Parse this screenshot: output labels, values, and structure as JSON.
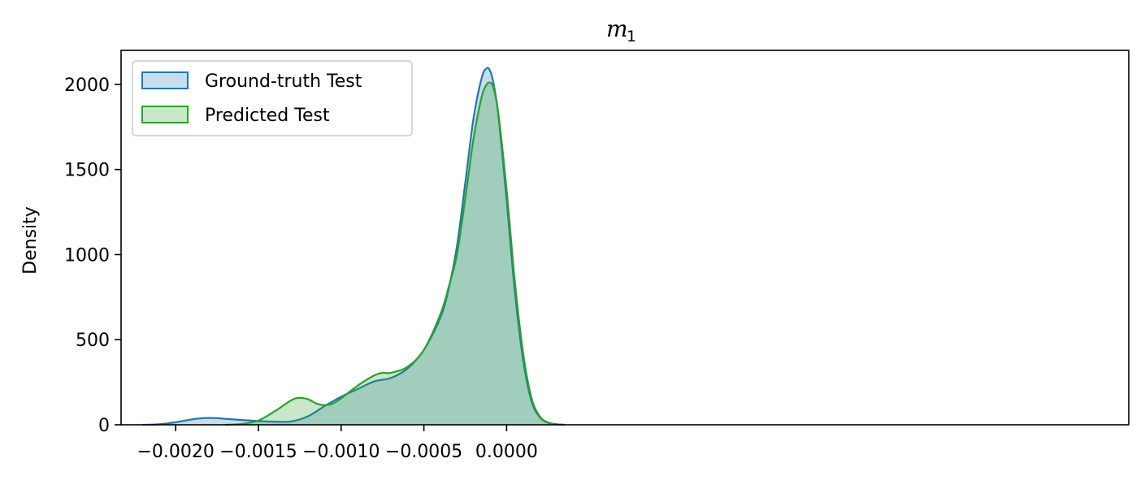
{
  "chart_data": {
    "type": "area",
    "title": "m",
    "title_subscript": "1",
    "xlabel": "",
    "ylabel": "Density",
    "xlim": [
      -0.00233,
      0.00376
    ],
    "ylim": [
      0,
      2200
    ],
    "xticks": [
      -0.002,
      -0.0015,
      -0.001,
      -0.0005,
      0.0
    ],
    "xtick_labels": [
      "−0.0020",
      "−0.0015",
      "−0.0010",
      "−0.0005",
      "0.0000"
    ],
    "yticks": [
      0,
      500,
      1000,
      1500,
      2000
    ],
    "ytick_labels": [
      "0",
      "500",
      "1000",
      "1500",
      "2000"
    ],
    "grid": false,
    "legend_position": "top-left",
    "series": [
      {
        "name": "Ground-truth Test",
        "color": "#1f77b4",
        "fill": "#1f77b4",
        "x": [
          -0.0022,
          -0.0021,
          -0.002,
          -0.0019,
          -0.00185,
          -0.0018,
          -0.00175,
          -0.0017,
          -0.0016,
          -0.0015,
          -0.0014,
          -0.0013,
          -0.0012,
          -0.0011,
          -0.001,
          -0.0009,
          -0.0008,
          -0.0007,
          -0.0006,
          -0.0005,
          -0.0004,
          -0.00035,
          -0.0003,
          -0.00025,
          -0.0002,
          -0.00015,
          -0.00012,
          -0.0001,
          -8e-05,
          -5e-05,
          0.0,
          5e-05,
          0.0001,
          0.00015,
          0.0002,
          0.00025,
          0.0003,
          0.00035
        ],
        "values": [
          0,
          3,
          15,
          32,
          38,
          40,
          39,
          35,
          28,
          22,
          18,
          20,
          50,
          110,
          165,
          210,
          255,
          275,
          330,
          440,
          630,
          800,
          1050,
          1420,
          1800,
          2040,
          2095,
          2080,
          2010,
          1820,
          1320,
          780,
          380,
          140,
          45,
          12,
          3,
          0
        ]
      },
      {
        "name": "Predicted Test",
        "color": "#2ca02c",
        "fill": "#2ca02c",
        "x": [
          -0.0017,
          -0.0016,
          -0.0015,
          -0.0014,
          -0.0013,
          -0.00125,
          -0.0012,
          -0.00115,
          -0.0011,
          -0.00105,
          -0.001,
          -0.0009,
          -0.0008,
          -0.00075,
          -0.0007,
          -0.0006,
          -0.0005,
          -0.0004,
          -0.00035,
          -0.0003,
          -0.00025,
          -0.0002,
          -0.00015,
          -0.00012,
          -0.0001,
          -8e-05,
          -5e-05,
          0.0,
          5e-05,
          0.0001,
          0.00015,
          0.0002,
          0.00025,
          0.0003,
          0.00035
        ],
        "values": [
          0,
          5,
          25,
          80,
          145,
          158,
          150,
          125,
          115,
          125,
          155,
          230,
          290,
          305,
          305,
          340,
          440,
          650,
          810,
          1000,
          1330,
          1680,
          1930,
          2000,
          2010,
          1980,
          1830,
          1380,
          840,
          420,
          160,
          50,
          14,
          4,
          0
        ]
      }
    ]
  }
}
